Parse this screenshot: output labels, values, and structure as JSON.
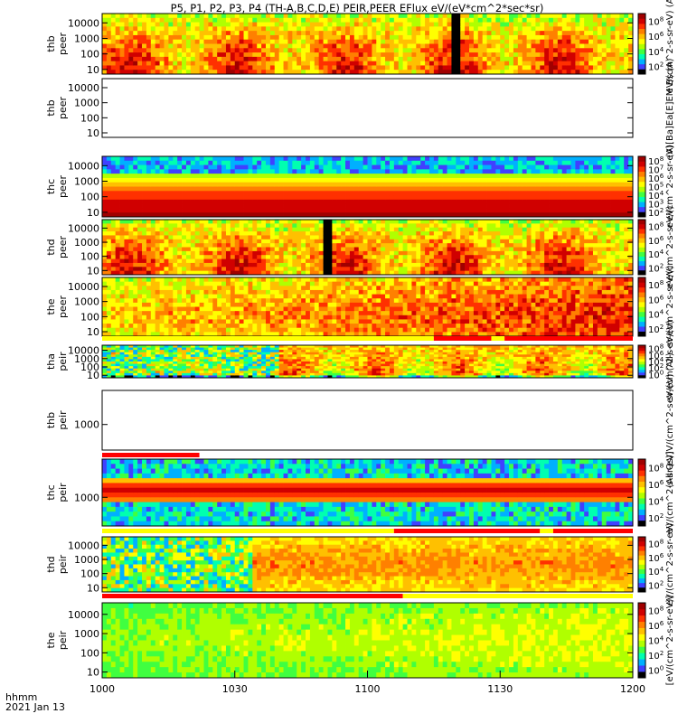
{
  "chart_data": {
    "type": "heatmap",
    "title": "P5, P1, P2, P3, P4 (TH-A,B,C,D,E) PEIR,PEER EFlux eV/(eV*cm^2*sec*sr)",
    "xlabel_units": "hhmm",
    "date_label": "2021 Jan 13",
    "x_ticks": [
      "1000",
      "1030",
      "1100",
      "1130",
      "1200"
    ],
    "x_range_minutes": [
      0,
      120
    ],
    "panels": [
      {
        "label1": "thb",
        "label2": "peer",
        "side": "(A) Ba Ea [E]EM Bs",
        "yticks": [
          "10",
          "100",
          "1000",
          "10000"
        ],
        "y_log_range": [
          0.7,
          4.6
        ],
        "empty": false,
        "cbar_ticks": [
          "10^2",
          "10^4",
          "10^6",
          "10^8"
        ],
        "cbar_label": "eV/(cm^2-s-sr-eV) (A)",
        "profile": "active",
        "gaps": [
          {
            "from": 78.5,
            "to": 80.5
          }
        ],
        "flags": []
      },
      {
        "label1": "thb",
        "label2": "peer",
        "side": "",
        "yticks": [
          "10",
          "100",
          "1000",
          "10000"
        ],
        "y_log_range": [
          0.7,
          4.6
        ],
        "empty": true,
        "cbar_ticks": [],
        "cbar_label": "(A)[Ba]Ea[E]EM Bs (A)",
        "profile": "none",
        "gaps": [],
        "flags": []
      },
      {
        "label1": "thc",
        "label2": "peer",
        "side": "",
        "yticks": [
          "10",
          "100",
          "1000",
          "10000"
        ],
        "y_log_range": [
          0.7,
          4.6
        ],
        "empty": false,
        "cbar_ticks": [
          "10^2",
          "10^3",
          "10^4",
          "10^5",
          "10^6",
          "10^7",
          "10^8"
        ],
        "cbar_label": "eV/(cm^2-s-sr-eV)",
        "profile": "steady",
        "gaps": [],
        "flags": []
      },
      {
        "label1": "thd",
        "label2": "peer",
        "side": "",
        "yticks": [
          "10",
          "100",
          "1000",
          "10000"
        ],
        "y_log_range": [
          0.7,
          4.6
        ],
        "empty": false,
        "cbar_ticks": [
          "10^2",
          "10^4",
          "10^6",
          "10^8"
        ],
        "cbar_label": "eV/(cm^2-s-sr-eV)",
        "profile": "active",
        "gaps": [
          {
            "from": 49.5,
            "to": 51.5
          }
        ],
        "flags": []
      },
      {
        "label1": "the",
        "label2": "peer",
        "side": "",
        "yticks": [
          "10",
          "100",
          "1000",
          "10000"
        ],
        "y_log_range": [
          0.7,
          4.6
        ],
        "empty": false,
        "cbar_ticks": [
          "10^2",
          "10^4",
          "10^6",
          "10^8"
        ],
        "cbar_label": "eV/(cm^2-s-sr-eV)",
        "profile": "warm",
        "gaps": [],
        "flags": [
          {
            "from": 0,
            "to": 75,
            "color": "#ffff00"
          },
          {
            "from": 75,
            "to": 88,
            "color": "#ff0000"
          },
          {
            "from": 88,
            "to": 91,
            "color": "#ffff00"
          },
          {
            "from": 91,
            "to": 120,
            "color": "#ff0000"
          }
        ]
      },
      {
        "label1": "tha",
        "label2": "peir",
        "side": "",
        "yticks": [
          "10",
          "100",
          "1000",
          "10000"
        ],
        "y_log_range": [
          0.7,
          4.6
        ],
        "empty": false,
        "cbar_ticks": [
          "10^0",
          "10^2",
          "10^4",
          "10^6",
          "10^8"
        ],
        "cbar_label": "eV/(cm^2-s-sr-eV)",
        "profile": "ion",
        "gaps": [],
        "flags": []
      },
      {
        "label1": "thb",
        "label2": "peir",
        "side": "",
        "yticks": [
          "1000"
        ],
        "y_log_range": [
          1.8,
          4.6
        ],
        "empty": true,
        "cbar_ticks": [],
        "cbar_label": "(All Qs)]V/(cm^2-s-sr-eV) (All)",
        "profile": "none",
        "gaps": [],
        "flags": []
      },
      {
        "label1": "thc",
        "label2": "peir",
        "side": "",
        "yticks": [
          "1000"
        ],
        "y_log_range": [
          1.8,
          4.6
        ],
        "empty": false,
        "cbar_ticks": [
          "10^2",
          "10^4",
          "10^6",
          "10^8"
        ],
        "cbar_label": "eV/(cm^2-s-sr-eV)",
        "profile": "steady2",
        "gaps": [],
        "flags": [
          {
            "from": 0,
            "to": 22,
            "color": "#ff0000"
          },
          {
            "from": 22,
            "to": 120,
            "color": "#ffffff"
          }
        ]
      },
      {
        "label1": "thd",
        "label2": "peir",
        "side": "",
        "yticks": [
          "10",
          "100",
          "1000",
          "10000"
        ],
        "y_log_range": [
          0.7,
          4.6
        ],
        "empty": false,
        "cbar_ticks": [
          "10^2",
          "10^4",
          "10^6",
          "10^8"
        ],
        "cbar_label": "eV/(cm^2-s-sr-eV)",
        "profile": "ion2",
        "gaps": [],
        "flags": [
          {
            "from": 0,
            "to": 66,
            "color": "#ffff00"
          },
          {
            "from": 66,
            "to": 99,
            "color": "#ff0000"
          },
          {
            "from": 99,
            "to": 102,
            "color": "#ffff00"
          },
          {
            "from": 102,
            "to": 120,
            "color": "#ff0000"
          }
        ]
      },
      {
        "label1": "the",
        "label2": "peir",
        "side": "",
        "yticks": [
          "10",
          "100",
          "1000",
          "10000"
        ],
        "y_log_range": [
          0.7,
          4.6
        ],
        "empty": false,
        "cbar_ticks": [
          "10^0",
          "10^2",
          "10^4",
          "10^6",
          "10^8"
        ],
        "cbar_label": "[eV/(cm^2-s-sr-eV)]",
        "profile": "quiet",
        "gaps": [],
        "flags": [
          {
            "from": 0,
            "to": 68,
            "color": "#ff0000"
          },
          {
            "from": 68,
            "to": 120,
            "color": "#ffff00"
          }
        ]
      }
    ],
    "colorscale": [
      "#000000",
      "#4040ff",
      "#00b0ff",
      "#00ffb0",
      "#40ff40",
      "#b0ff00",
      "#ffff00",
      "#ffc000",
      "#ff8000",
      "#ff3000",
      "#d00000",
      "#a00000"
    ],
    "grid": false,
    "legend": "colorbar right of each panel"
  }
}
